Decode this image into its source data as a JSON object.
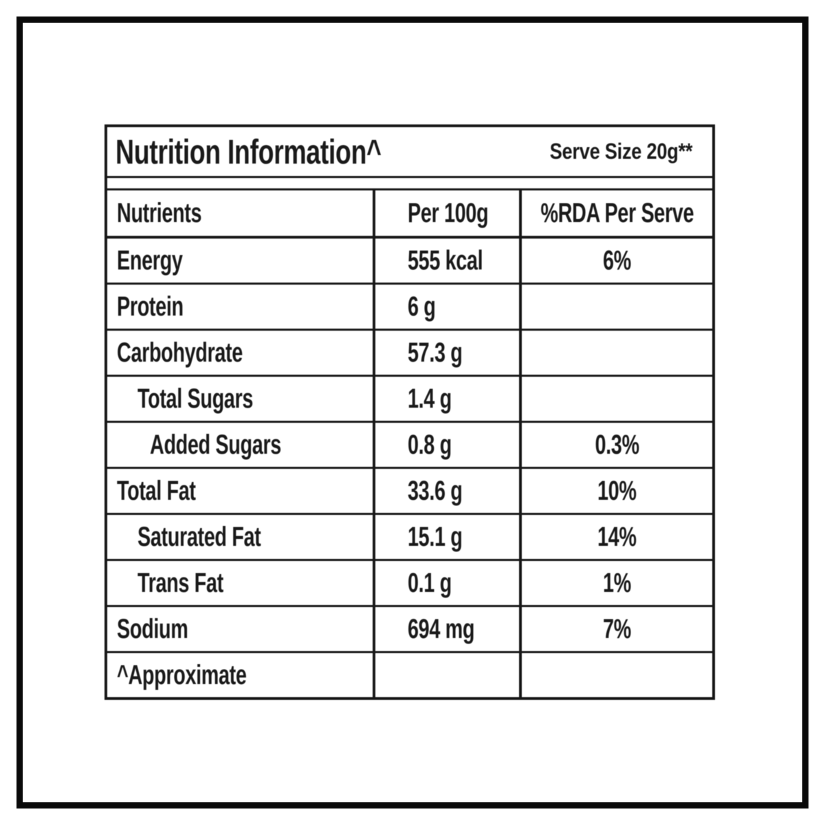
{
  "table": {
    "title": "Nutrition Information^",
    "serve_size": "Serve Size 20g**",
    "columns": [
      "Nutrients",
      "Per 100g",
      "%RDA Per Serve"
    ],
    "rows": [
      {
        "label": "Energy",
        "indent": 0,
        "per_100g": "555 kcal",
        "rda_per_serve": "6%"
      },
      {
        "label": "Protein",
        "indent": 0,
        "per_100g": "6 g",
        "rda_per_serve": ""
      },
      {
        "label": "Carbohydrate",
        "indent": 0,
        "per_100g": "57.3 g",
        "rda_per_serve": ""
      },
      {
        "label": "Total Sugars",
        "indent": 1,
        "per_100g": "1.4 g",
        "rda_per_serve": ""
      },
      {
        "label": "Added Sugars",
        "indent": 2,
        "per_100g": "0.8 g",
        "rda_per_serve": "0.3%"
      },
      {
        "label": "Total Fat",
        "indent": 0,
        "per_100g": "33.6 g",
        "rda_per_serve": "10%"
      },
      {
        "label": "Saturated Fat",
        "indent": 1,
        "per_100g": "15.1 g",
        "rda_per_serve": "14%"
      },
      {
        "label": "Trans Fat",
        "indent": 1,
        "per_100g": "0.1 g",
        "rda_per_serve": "1%"
      },
      {
        "label": "Sodium",
        "indent": 0,
        "per_100g": "694 mg",
        "rda_per_serve": "7%"
      },
      {
        "label": "^Approximate",
        "indent": 0,
        "per_100g": "",
        "rda_per_serve": ""
      }
    ],
    "footnote_marker": "^",
    "colors": {
      "text": "#1a1a1a",
      "line": "#181818",
      "background": "#ffffff",
      "frame": "#0a0a0a"
    }
  }
}
